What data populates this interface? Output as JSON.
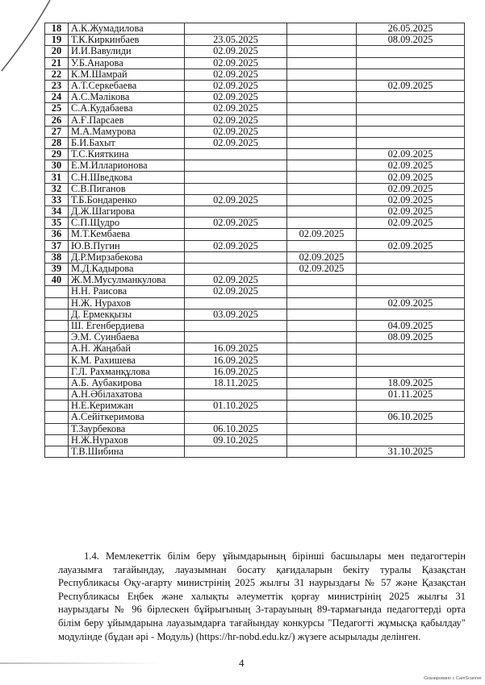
{
  "table": {
    "rows": [
      {
        "num": "18",
        "name": "А.К.Жумадилова",
        "c2": "",
        "c3": "",
        "c4": "26.05.2025"
      },
      {
        "num": "19",
        "name": "Т.К.Киркинбаев",
        "c2": "23.05.2025",
        "c3": "",
        "c4": "08.09.2025"
      },
      {
        "num": "20",
        "name": "И.И.Вавулиди",
        "c2": "02.09.2025",
        "c3": "",
        "c4": ""
      },
      {
        "num": "21",
        "name": "У.Б.Анарова",
        "c2": "02.09.2025",
        "c3": "",
        "c4": ""
      },
      {
        "num": "22",
        "name": "К.М.Шамрай",
        "c2": "02.09.2025",
        "c3": "",
        "c4": ""
      },
      {
        "num": "23",
        "name": "А.Т.Серкебаева",
        "c2": "02.09.2025",
        "c3": "",
        "c4": "02.09.2025"
      },
      {
        "num": "24",
        "name": "А.С.Мәлікова",
        "c2": "02.09.2025",
        "c3": "",
        "c4": ""
      },
      {
        "num": "25",
        "name": "С.А.Кудабаева",
        "c2": "02.09.2025",
        "c3": "",
        "c4": ""
      },
      {
        "num": "26",
        "name": "А.Ғ.Парсаев",
        "c2": "02.09.2025",
        "c3": "",
        "c4": ""
      },
      {
        "num": "27",
        "name": "М.А.Мамурова",
        "c2": "02.09.2025",
        "c3": "",
        "c4": ""
      },
      {
        "num": "28",
        "name": "Б.И.Бахыт",
        "c2": "02.09.2025",
        "c3": "",
        "c4": ""
      },
      {
        "num": "29",
        "name": "Т.С.Кияткина",
        "c2": "",
        "c3": "",
        "c4": "02.09.2025"
      },
      {
        "num": "30",
        "name": "Е.М.Илларионова",
        "c2": "",
        "c3": "",
        "c4": "02.09.2025"
      },
      {
        "num": "31",
        "name": "С.Н.Шведкова",
        "c2": "",
        "c3": "",
        "c4": "02.09.2025"
      },
      {
        "num": "32",
        "name": "С.В.Пиганов",
        "c2": "",
        "c3": "",
        "c4": "02.09.2025"
      },
      {
        "num": "33",
        "name": "Т.Б.Бондаренко",
        "c2": "02.09.2025",
        "c3": "",
        "c4": "02.09.2025"
      },
      {
        "num": "34",
        "name": "Д.Ж.Шагирова",
        "c2": "",
        "c3": "",
        "c4": "02.09.2025"
      },
      {
        "num": "35",
        "name": "С.П.Щудро",
        "c2": "02.09.2025",
        "c3": "",
        "c4": "02.09.2025"
      },
      {
        "num": "36",
        "name": "М.Т.Кембаева",
        "c2": "",
        "c3": "02.09.2025",
        "c4": ""
      },
      {
        "num": "37",
        "name": "Ю.В.Пугин",
        "c2": "02.09.2025",
        "c3": "",
        "c4": "02.09.2025"
      },
      {
        "num": "38",
        "name": "Д.Р.Мирзабекова",
        "c2": "",
        "c3": "02.09.2025",
        "c4": ""
      },
      {
        "num": "39",
        "name": "М.Д.Кадырова",
        "c2": "",
        "c3": "02.09.2025",
        "c4": ""
      },
      {
        "num": "40",
        "name": "Ж.М.Мусулманкулова",
        "c2": "02.09.2025",
        "c3": "",
        "c4": ""
      },
      {
        "num": "",
        "name": "Н.Н. Раисова",
        "c2": "02.09.2025",
        "c3": "",
        "c4": ""
      },
      {
        "num": "",
        "name": "Н.Ж. Нурахов",
        "c2": "",
        "c3": "",
        "c4": "02.09.2025"
      },
      {
        "num": "",
        "name": "Д. Ермекқызы",
        "c2": "03.09.2025",
        "c3": "",
        "c4": ""
      },
      {
        "num": "",
        "name": "Ш. Егенбердиева",
        "c2": "",
        "c3": "",
        "c4": "04.09.2025"
      },
      {
        "num": "",
        "name": "Э.М. Суинбаева",
        "c2": "",
        "c3": "",
        "c4": "08.09.2025"
      },
      {
        "num": "",
        "name": "А.Н. Жаңабай",
        "c2": "16.09.2025",
        "c3": "",
        "c4": ""
      },
      {
        "num": "",
        "name": "К.М. Рахишева",
        "c2": "16.09.2025",
        "c3": "",
        "c4": ""
      },
      {
        "num": "",
        "name": "Г.Л. Рахманқұлова",
        "c2": "16.09.2025",
        "c3": "",
        "c4": ""
      },
      {
        "num": "",
        "name": "А.Б. Аубакирова",
        "c2": "18.11.2025",
        "c3": "",
        "c4": "18.09.2025"
      },
      {
        "num": "",
        "name": "А.Н.Әбілахатова",
        "c2": "",
        "c3": "",
        "c4": "01.11.2025"
      },
      {
        "num": "",
        "name": "Н.Е.Керимжан",
        "c2": "01.10.2025",
        "c3": "",
        "c4": ""
      },
      {
        "num": "",
        "name": "А.Сейіткеримова",
        "c2": "",
        "c3": "",
        "c4": "06.10.2025"
      },
      {
        "num": "",
        "name": "Т.Заурбекова",
        "c2": "06.10.2025",
        "c3": "",
        "c4": ""
      },
      {
        "num": "",
        "name": "Н.Ж.Нурахов",
        "c2": "09.10.2025",
        "c3": "",
        "c4": ""
      },
      {
        "num": "",
        "name": "Т.В.Шибина",
        "c2": "",
        "c3": "",
        "c4": "31.10.2025"
      }
    ]
  },
  "paragraph": "1.4. Мемлекеттік білім беру ұйымдарының бірінші басшылары мен педагогтерін лауазымға тағайындау, лауазымнан босату қағидаларын бекіту туралы Қазақстан Республикасы Оқу-ағарту министрінің 2025 жылғы 31 наурыздағы № 57 және Қазақстан Республикасы Еңбек және халықты әлеуметтік қорғау министрінің 2025 жылғы 31 наурыздағы № 96 бірлескен бұйрығының 3-тарауының 89-тармағында педагогтерді орта білім беру ұйымдарына лауазымдарға тағайындау конкурсы \"Педагогті жұмысқа қабылдау\" модулінде (бұдан әрі - Модуль) (https://hr-nobd.edu.kz/) жүзеге асырылады делінген.",
  "page_number": "4",
  "watermark": "Сканировано с CamScanner"
}
